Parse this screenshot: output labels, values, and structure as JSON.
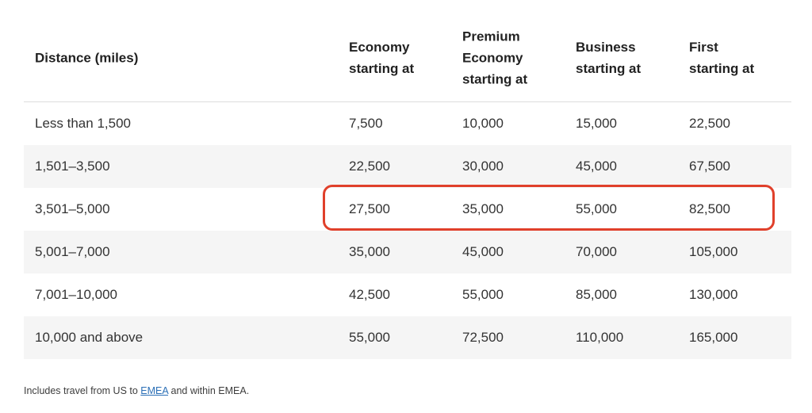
{
  "headers": [
    "Distance (miles)",
    "Economy\nstarting at",
    "Premium\nEconomy\nstarting at",
    "Business\nstarting at",
    "First\nstarting at"
  ],
  "rows": [
    [
      "Less than 1,500",
      "7,500",
      "10,000",
      "15,000",
      "22,500"
    ],
    [
      "1,501–3,500",
      "22,500",
      "30,000",
      "45,000",
      "67,500"
    ],
    [
      "3,501–5,000",
      "27,500",
      "35,000",
      "55,000",
      "82,500"
    ],
    [
      "5,001–7,000",
      "35,000",
      "45,000",
      "70,000",
      "105,000"
    ],
    [
      "7,001–10,000",
      "42,500",
      "55,000",
      "85,000",
      "130,000"
    ],
    [
      "10,000 and above",
      "55,000",
      "72,500",
      "110,000",
      "165,000"
    ]
  ],
  "highlighted_row_index": 2,
  "colors": {
    "highlight_border": "#e0402b",
    "alt_row_bg": "#f5f5f5",
    "link": "#2b6fb6"
  },
  "footnote": {
    "prefix": "Includes travel from US to ",
    "link_text": "EMEA",
    "suffix": " and within EMEA."
  }
}
